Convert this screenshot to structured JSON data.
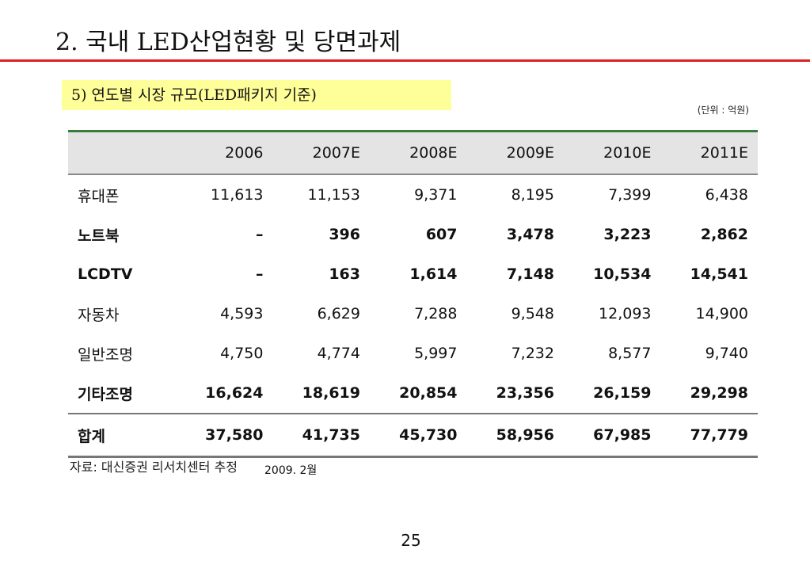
{
  "slide": {
    "title": "2. 국내 LED산업현황 및 당면과제",
    "subtitle": "5) 연도별 시장 규모(LED패키지 기준)",
    "unit": "(단위 : 억원)",
    "source": "자료: 대신증권 리서치센터 추정",
    "source_date": "2009. 2월",
    "page_number": "25"
  },
  "table": {
    "header": [
      "",
      "2006",
      "2007E",
      "2008E",
      "2009E",
      "2010E",
      "2011E"
    ],
    "rows": [
      {
        "label": "휴대폰",
        "values": [
          "11,613",
          "11,153",
          "9,371",
          "8,195",
          "7,399",
          "6,438"
        ]
      },
      {
        "label": "노트북",
        "values": [
          "–",
          "396",
          "607",
          "3,478",
          "3,223",
          "2,862"
        ]
      },
      {
        "label": "LCDTV",
        "values": [
          "–",
          "163",
          "1,614",
          "7,148",
          "10,534",
          "14,541"
        ]
      },
      {
        "label": "자동차",
        "values": [
          "4,593",
          "6,629",
          "7,288",
          "9,548",
          "12,093",
          "14,900"
        ]
      },
      {
        "label": "일반조명",
        "values": [
          "4,750",
          "4,774",
          "5,997",
          "7,232",
          "8,577",
          "9,740"
        ]
      },
      {
        "label": "기타조명",
        "values": [
          "16,624",
          "18,619",
          "20,854",
          "23,356",
          "26,159",
          "29,298"
        ]
      }
    ],
    "total": {
      "label": "합계",
      "values": [
        "37,580",
        "41,735",
        "45,730",
        "58,956",
        "67,985",
        "77,779"
      ]
    }
  }
}
